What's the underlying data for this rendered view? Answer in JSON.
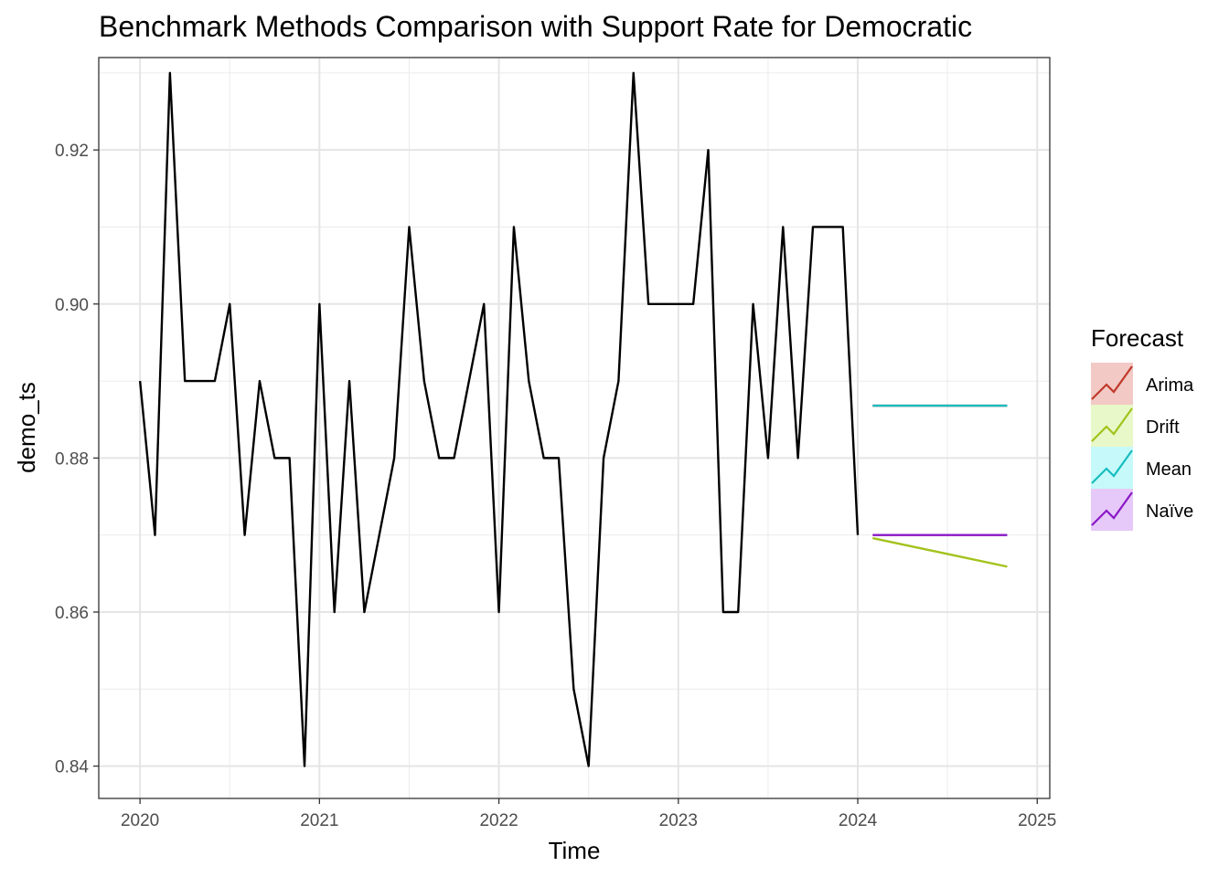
{
  "chart_data": {
    "type": "line",
    "title": "Benchmark Methods Comparison with Support Rate for Democratic",
    "xlabel": "Time",
    "ylabel": "demo_ts",
    "xlim": [
      2019.77,
      2025.07
    ],
    "ylim": [
      0.8358,
      0.932
    ],
    "x_ticks": [
      2020,
      2021,
      2022,
      2023,
      2024,
      2025
    ],
    "x_tick_labels": [
      "2020",
      "2021",
      "2022",
      "2023",
      "2024",
      "2025"
    ],
    "y_ticks": [
      0.84,
      0.86,
      0.88,
      0.9,
      0.92
    ],
    "y_tick_labels": [
      "0.84",
      "0.86",
      "0.88",
      "0.90",
      "0.92"
    ],
    "grid": true,
    "legend": {
      "title": "Forecast",
      "position": "right",
      "entries": [
        "Arima",
        "Drift",
        "Mean",
        "Naïve"
      ]
    },
    "colors": {
      "actual": "#000000",
      "Arima": "#c0392b",
      "Drift": "#a3c21c",
      "Mean": "#17bdbf",
      "Naïve": "#8b17c6"
    },
    "actual": {
      "name": "demo_ts",
      "start": 2020.0,
      "frequency": 12,
      "values": [
        0.89,
        0.87,
        0.93,
        0.89,
        0.89,
        0.89,
        0.9,
        0.87,
        0.89,
        0.88,
        0.88,
        0.84,
        0.9,
        0.86,
        0.89,
        0.86,
        0.87,
        0.88,
        0.91,
        0.89,
        0.88,
        0.88,
        0.89,
        0.9,
        0.86,
        0.91,
        0.89,
        0.88,
        0.88,
        0.85,
        0.84,
        0.88,
        0.89,
        0.93,
        0.9,
        0.9,
        0.9,
        0.9,
        0.92,
        0.86,
        0.86,
        0.9,
        0.88,
        0.91,
        0.88,
        0.91,
        0.91,
        0.91,
        0.87
      ]
    },
    "series": [
      {
        "name": "Arima",
        "x": [
          2024.083,
          2024.833
        ],
        "values": [
          0.8868,
          0.8868
        ]
      },
      {
        "name": "Drift",
        "x": [
          2024.083,
          2024.833
        ],
        "values": [
          0.8696,
          0.8659
        ]
      },
      {
        "name": "Mean",
        "x": [
          2024.083,
          2024.833
        ],
        "values": [
          0.8868,
          0.8868
        ]
      },
      {
        "name": "Naïve",
        "x": [
          2024.083,
          2024.833
        ],
        "values": [
          0.87,
          0.87
        ]
      }
    ]
  }
}
